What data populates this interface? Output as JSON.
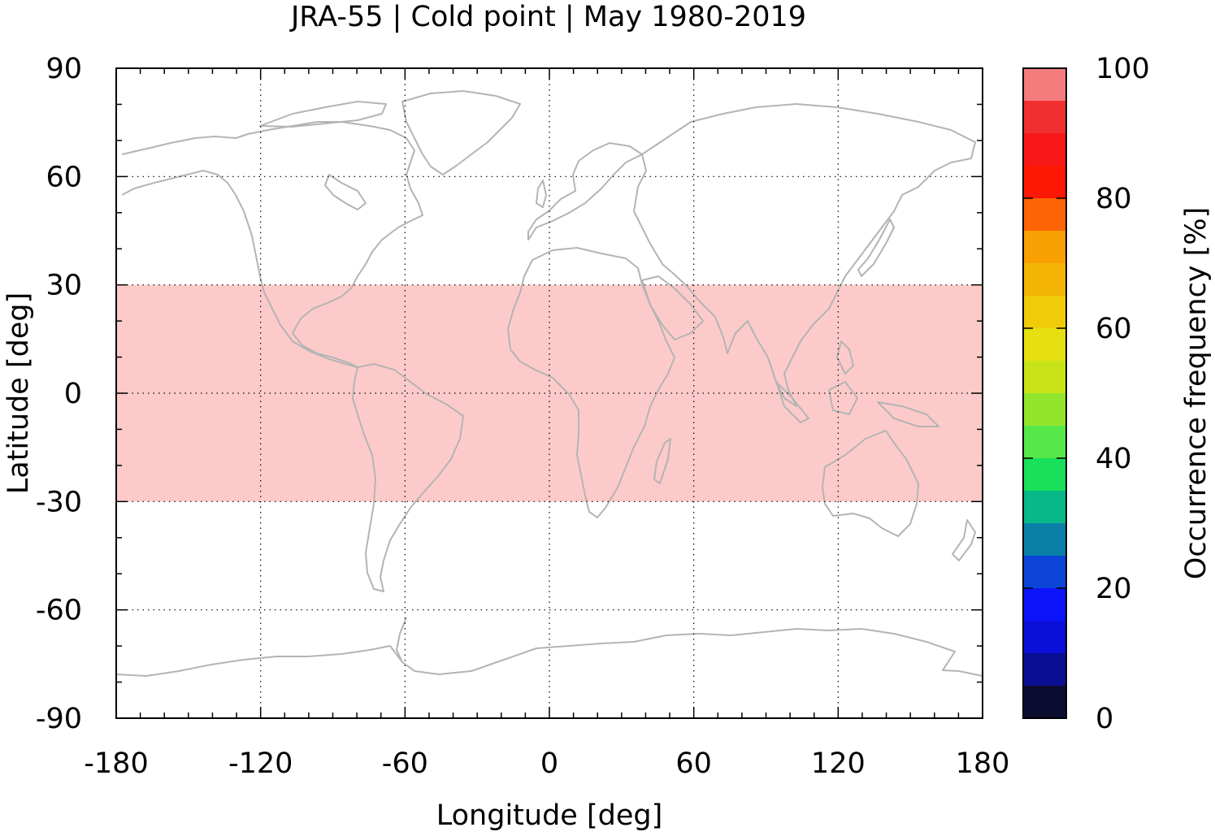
{
  "chart_data": {
    "type": "heatmap",
    "title": "JRA-55 | Cold point | May 1980-2019",
    "xlabel": "Longitude [deg]",
    "ylabel": "Latitude [deg]",
    "xlim": [
      -180,
      180
    ],
    "ylim": [
      -90,
      90
    ],
    "x_ticks": [
      -180,
      -120,
      -60,
      0,
      60,
      120,
      180
    ],
    "y_ticks": [
      90,
      60,
      30,
      0,
      -30,
      -60,
      -90
    ],
    "x_tick_labels": [
      "-180",
      "-120",
      "-60",
      "0",
      "60",
      "120",
      "180"
    ],
    "y_tick_labels": [
      "90",
      "60",
      "30",
      "0",
      "-30",
      "-60",
      "-90"
    ],
    "grid": true,
    "grid_style": "dotted",
    "coastlines": true,
    "coastline_color": "#b4b4b4",
    "regions": [
      {
        "lon": [
          -180,
          180
        ],
        "lat": [
          -30,
          30
        ],
        "value": 100
      }
    ],
    "colorbar": {
      "label": "Occurrence frequency [%]",
      "range": [
        0,
        100
      ],
      "step": 5,
      "ticks": [
        0,
        20,
        40,
        60,
        80,
        100
      ],
      "tick_labels": [
        "0",
        "20",
        "40",
        "60",
        "80",
        "100"
      ],
      "colors": [
        "#0b0d30",
        "#0a0e92",
        "#0a10d8",
        "#0c14fb",
        "#0c44d8",
        "#0a80a8",
        "#08b888",
        "#18e05a",
        "#56e848",
        "#92e42c",
        "#c8e418",
        "#e6e010",
        "#f0cc08",
        "#f4b404",
        "#f8a004",
        "#fe6404",
        "#fc1804",
        "#f81818",
        "#f03030",
        "#f47c7c",
        "#fdcaca"
      ]
    }
  }
}
